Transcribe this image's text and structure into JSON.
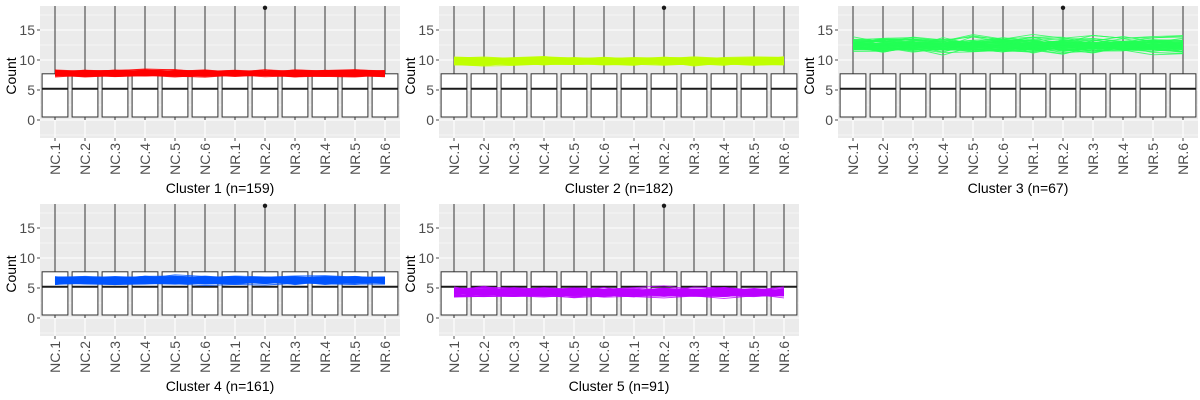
{
  "figure": {
    "panel_bg": "#ebebeb",
    "grid_color": "#ffffff",
    "box_stroke": "#333333",
    "tick_color": "#4d4d4d"
  },
  "chart_data": [
    {
      "type": "box-with-lines",
      "title": "Cluster 1 (n=159)",
      "xlabel": "Cluster 1 (n=159)",
      "ylabel": "Count",
      "categories": [
        "NC.1",
        "NC.2",
        "NC.3",
        "NC.4",
        "NC.5",
        "NC.6",
        "NR.1",
        "NR.2",
        "NR.3",
        "NR.4",
        "NR.5",
        "NR.6"
      ],
      "yticks": [
        0,
        5,
        10,
        15
      ],
      "ylim": [
        -3,
        19
      ],
      "boxplot": {
        "whisker_low": 0,
        "q1": 0.5,
        "median": 5.2,
        "q3": 7.7,
        "whisker_high": 19
      },
      "outliers": [
        {
          "category": "NR.2",
          "value": 18.7
        }
      ],
      "line_color": "#ff0000",
      "line_count": 159,
      "line_center": 7.8,
      "line_spread": 0.5
    },
    {
      "type": "box-with-lines",
      "title": "Cluster 2 (n=182)",
      "xlabel": "Cluster 2 (n=182)",
      "ylabel": "Count",
      "categories": [
        "NC.1",
        "NC.2",
        "NC.3",
        "NC.4",
        "NC.5",
        "NC.6",
        "NR.1",
        "NR.2",
        "NR.3",
        "NR.4",
        "NR.5",
        "NR.6"
      ],
      "yticks": [
        0,
        5,
        10,
        15
      ],
      "ylim": [
        -3,
        19
      ],
      "boxplot": {
        "whisker_low": 0,
        "q1": 0.5,
        "median": 5.2,
        "q3": 7.7,
        "whisker_high": 19
      },
      "outliers": [
        {
          "category": "NR.2",
          "value": 18.7
        }
      ],
      "line_color": "#c0ff00",
      "line_count": 182,
      "line_center": 9.8,
      "line_spread": 0.6
    },
    {
      "type": "box-with-lines",
      "title": "Cluster 3 (n=67)",
      "xlabel": "Cluster 3 (n=67)",
      "ylabel": "Count",
      "categories": [
        "NC.1",
        "NC.2",
        "NC.3",
        "NC.4",
        "NC.5",
        "NC.6",
        "NR.1",
        "NR.2",
        "NR.3",
        "NR.4",
        "NR.5",
        "NR.6"
      ],
      "yticks": [
        0,
        5,
        10,
        15
      ],
      "ylim": [
        -3,
        19
      ],
      "boxplot": {
        "whisker_low": 0,
        "q1": 0.5,
        "median": 5.2,
        "q3": 7.7,
        "whisker_high": 19
      },
      "outliers": [
        {
          "category": "NR.2",
          "value": 18.7
        }
      ],
      "line_color": "#22ff55",
      "line_count": 67,
      "line_center": 12.5,
      "line_spread": 1.3
    },
    {
      "type": "box-with-lines",
      "title": "Cluster 4 (n=161)",
      "xlabel": "Cluster 4 (n=161)",
      "ylabel": "Count",
      "categories": [
        "NC.1",
        "NC.2",
        "NC.3",
        "NC.4",
        "NC.5",
        "NC.6",
        "NR.1",
        "NR.2",
        "NR.3",
        "NR.4",
        "NR.5",
        "NR.6"
      ],
      "yticks": [
        0,
        5,
        10,
        15
      ],
      "ylim": [
        -3,
        19
      ],
      "boxplot": {
        "whisker_low": 0,
        "q1": 0.5,
        "median": 5.2,
        "q3": 7.7,
        "whisker_high": 19
      },
      "outliers": [
        {
          "category": "NR.2",
          "value": 18.7
        }
      ],
      "line_color": "#0055ff",
      "line_count": 161,
      "line_center": 6.3,
      "line_spread": 0.6
    },
    {
      "type": "box-with-lines",
      "title": "Cluster 5 (n=91)",
      "xlabel": "Cluster 5 (n=91)",
      "ylabel": "Count",
      "categories": [
        "NC.1",
        "NC.2",
        "NC.3",
        "NC.4",
        "NC.5",
        "NC.6",
        "NR.1",
        "NR.2",
        "NR.3",
        "NR.4",
        "NR.5",
        "NR.6"
      ],
      "yticks": [
        0,
        5,
        10,
        15
      ],
      "ylim": [
        -3,
        19
      ],
      "boxplot": {
        "whisker_low": 0,
        "q1": 0.5,
        "median": 5.2,
        "q3": 7.7,
        "whisker_high": 19
      },
      "outliers": [
        {
          "category": "NR.2",
          "value": 18.7
        }
      ],
      "line_color": "#bb00ff",
      "line_count": 91,
      "line_center": 4.3,
      "line_spread": 0.8
    }
  ]
}
